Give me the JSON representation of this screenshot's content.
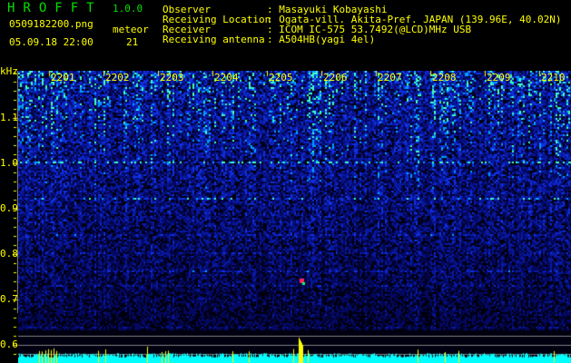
{
  "app": {
    "title": "HROFFT",
    "version": "1.0.0"
  },
  "file": {
    "name": "0509182200.png",
    "datetime": "05.09.18 22:00"
  },
  "meteor": {
    "label": "meteor",
    "count": "21"
  },
  "info": [
    {
      "label": "Observer",
      "value": ": Masayuki Kobayashi"
    },
    {
      "label": "Receiving Location",
      "value": ": Ogata-vill. Akita-Pref. JAPAN (139.96E, 40.02N)"
    },
    {
      "label": "Receiver",
      "value": ": ICOM IC-575 53.7492(@LCD)MHz USB"
    },
    {
      "label": "Receiving antenna",
      "value": ": A504HB(yagi 4el)"
    }
  ],
  "axis": {
    "unit": "kHz",
    "y_ticks": [
      "1.1",
      "1.0",
      "0.9",
      "0.8",
      "0.7",
      "0.6"
    ],
    "time_ticks": [
      "2201",
      "2202",
      "2203",
      "2204",
      "2205",
      "2206",
      "2207",
      "2208",
      "2209",
      "2210"
    ]
  },
  "colors": {
    "text": "#ffff00",
    "title": "#00e000",
    "spectrum_bg": "#000060",
    "echo_count": "#00ffff",
    "meteor_marker": "#ffff00"
  }
}
